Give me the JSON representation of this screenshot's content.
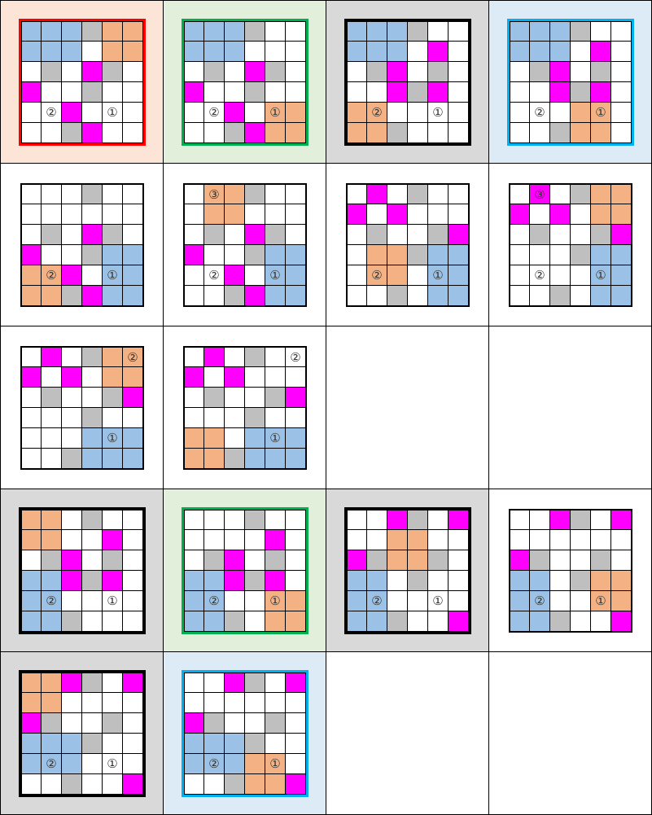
{
  "colors": {
    "W": "#ffffff",
    "B": "#9bc2e6",
    "O": "#f4b183",
    "G": "#bfbfbf",
    "M": "#ff00ff"
  },
  "tile_styles": {
    "peach": {
      "bg": "#fce4d6",
      "frame": "#ff0000"
    },
    "green": {
      "bg": "#e2efda",
      "frame": "#00b050"
    },
    "gray": {
      "bg": "#d9d9d9",
      "frame": "#000000"
    },
    "blue": {
      "bg": "#ddebf7",
      "frame": "#00b0f0"
    },
    "plain": {
      "bg": "#ffffff",
      "frame": null
    }
  },
  "tiles": [
    {
      "style": "peach",
      "rows": [
        "BBBGOO",
        "BBBWOO",
        "WGWMGW",
        "MWWGWW",
        "WWMWWW",
        "WWGMWW"
      ],
      "labels": [
        {
          "r": 4,
          "c": 1,
          "t": "②"
        },
        {
          "r": 4,
          "c": 4,
          "t": "①"
        }
      ]
    },
    {
      "style": "green",
      "rows": [
        "BBBGWW",
        "BBBWWW",
        "WGWMGW",
        "MWWGWW",
        "WWMWOO",
        "WWGMOO"
      ],
      "labels": [
        {
          "r": 4,
          "c": 1,
          "t": "②"
        },
        {
          "r": 4,
          "c": 4,
          "t": "①"
        }
      ]
    },
    {
      "style": "gray",
      "rows": [
        "BBBGWW",
        "BBBWMW",
        "WGMWGW",
        "WWMGMW",
        "OOWWWW",
        "OOGWWW"
      ],
      "labels": [
        {
          "r": 4,
          "c": 1,
          "t": "②"
        },
        {
          "r": 4,
          "c": 4,
          "t": "①"
        }
      ]
    },
    {
      "style": "blue",
      "rows": [
        "BBBGWW",
        "BBBWMW",
        "WGMWGW",
        "WWMGMW",
        "WWWOOW",
        "WWGOOW"
      ],
      "labels": [
        {
          "r": 4,
          "c": 1,
          "t": "②"
        },
        {
          "r": 4,
          "c": 4,
          "t": "①"
        }
      ]
    },
    {
      "style": "plain",
      "rows": [
        "WWWGWW",
        "WWWWWW",
        "WGWMGW",
        "MWWGBB",
        "OOMWBB",
        "OOGMBB"
      ],
      "labels": [
        {
          "r": 4,
          "c": 1,
          "t": "②"
        },
        {
          "r": 4,
          "c": 4,
          "t": "①"
        }
      ]
    },
    {
      "style": "plain",
      "rows": [
        "WOOGWW",
        "WOOWWW",
        "WGWMGW",
        "MWWGBB",
        "WWMWBB",
        "WWGMBB"
      ],
      "labels": [
        {
          "r": 0,
          "c": 1,
          "t": "③"
        },
        {
          "r": 4,
          "c": 1,
          "t": "②"
        },
        {
          "r": 4,
          "c": 4,
          "t": "①"
        }
      ]
    },
    {
      "style": "plain",
      "rows": [
        "WMWGWW",
        "MWMWWW",
        "WGWWGM",
        "WOOGBB",
        "WOOWBB",
        "WWGWBB"
      ],
      "labels": [
        {
          "r": 4,
          "c": 1,
          "t": "②"
        },
        {
          "r": 4,
          "c": 4,
          "t": "①"
        }
      ]
    },
    {
      "style": "plain",
      "rows": [
        "WMWGOO",
        "MWMWOO",
        "WGWWGM",
        "WWWGBB",
        "WWWWBB",
        "WWGWBB"
      ],
      "labels": [
        {
          "r": 0,
          "c": 1,
          "t": "③"
        },
        {
          "r": 4,
          "c": 1,
          "t": "②"
        },
        {
          "r": 4,
          "c": 4,
          "t": "①"
        }
      ]
    },
    {
      "style": "plain",
      "rows": [
        "WMWGOO",
        "MWMWOO",
        "WGWWGM",
        "WWWGWW",
        "WWWBBB",
        "WWGBBB"
      ],
      "labels": [
        {
          "r": 0,
          "c": 5,
          "t": "②"
        },
        {
          "r": 4,
          "c": 4,
          "t": "①"
        }
      ]
    },
    {
      "style": "plain",
      "rows": [
        "WMWGWW",
        "MWMWWW",
        "WGWWGM",
        "WWWGWW",
        "OOWBBB",
        "OOGBBB"
      ],
      "labels": [
        {
          "r": 0,
          "c": 5,
          "t": "②"
        },
        {
          "r": 4,
          "c": 4,
          "t": "①"
        }
      ]
    },
    null,
    null,
    {
      "style": "gray",
      "rows": [
        "OOWGWW",
        "OOWWMW",
        "WGMWGW",
        "BBMGMW",
        "BBWWWW",
        "BBGWWW"
      ],
      "labels": [
        {
          "r": 4,
          "c": 1,
          "t": "②"
        },
        {
          "r": 4,
          "c": 4,
          "t": "①"
        }
      ]
    },
    {
      "style": "green",
      "rows": [
        "WWWGWW",
        "WWWWMW",
        "WGMWGW",
        "BBMGMW",
        "BBWWOO",
        "BBGWOO"
      ],
      "labels": [
        {
          "r": 4,
          "c": 1,
          "t": "②"
        },
        {
          "r": 4,
          "c": 4,
          "t": "①"
        }
      ]
    },
    {
      "style": "gray",
      "rows": [
        "WWMGWM",
        "WWOOWW",
        "MGOOGW",
        "BBWGWW",
        "BBWWWW",
        "BBGWWM"
      ],
      "labels": [
        {
          "r": 4,
          "c": 1,
          "t": "②"
        },
        {
          "r": 4,
          "c": 4,
          "t": "①"
        }
      ]
    },
    {
      "style": "plain",
      "rows": [
        "WWMGWM",
        "WWWWWW",
        "MGWWGW",
        "BBWGOO",
        "BBWWOO",
        "BBGWWM"
      ],
      "labels": [
        {
          "r": 4,
          "c": 1,
          "t": "②"
        },
        {
          "r": 4,
          "c": 4,
          "t": "①"
        }
      ]
    },
    {
      "style": "gray",
      "rows": [
        "OOMGWM",
        "OOWWWW",
        "MGWWGW",
        "BBBGWW",
        "BBBWWW",
        "WWGWWM"
      ],
      "labels": [
        {
          "r": 4,
          "c": 1,
          "t": "②"
        },
        {
          "r": 4,
          "c": 4,
          "t": "①"
        }
      ]
    },
    {
      "style": "blue",
      "rows": [
        "WWMGWM",
        "WWWWWW",
        "MGWWGW",
        "BBBGWW",
        "BBBOOW",
        "WWGOOM"
      ],
      "labels": [
        {
          "r": 4,
          "c": 1,
          "t": "②"
        },
        {
          "r": 4,
          "c": 4,
          "t": "①"
        }
      ]
    },
    null,
    null
  ]
}
